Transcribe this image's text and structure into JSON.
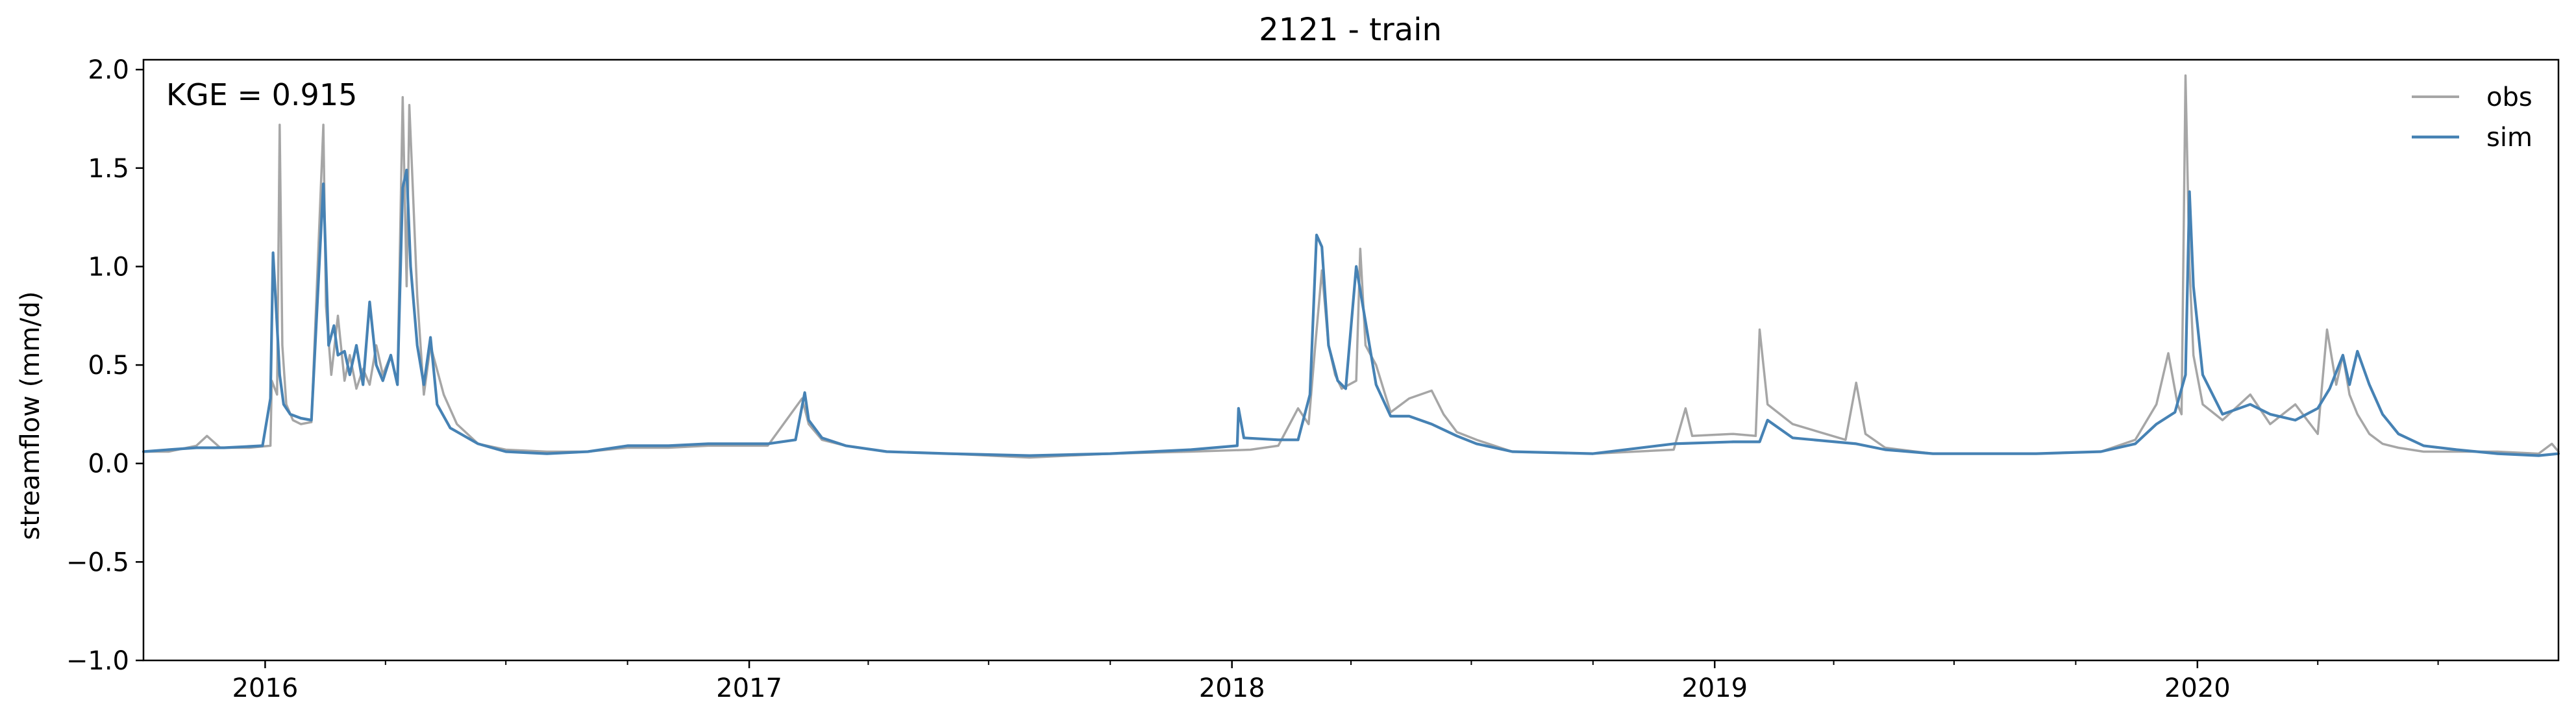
{
  "chart_data": {
    "type": "line",
    "title": "2121 - train",
    "xlabel": "",
    "ylabel": "streamflow (mm/d)",
    "annotation": "KGE = 0.915",
    "x_range": [
      "2015-10-01",
      "2020-09-30"
    ],
    "ylim": [
      -1.0,
      2.05
    ],
    "y_ticks": [
      -1.0,
      -0.5,
      0.0,
      0.5,
      1.0,
      1.5,
      2.0
    ],
    "y_tick_labels": [
      "−1.0",
      "−0.5",
      "0.0",
      "0.5",
      "1.0",
      "1.5",
      "2.0"
    ],
    "x_major_ticks": [
      "2016-01-01",
      "2017-01-01",
      "2018-01-01",
      "2019-01-01",
      "2020-01-01"
    ],
    "x_tick_labels": [
      "2016",
      "2017",
      "2018",
      "2019",
      "2020"
    ],
    "grid": false,
    "legend": {
      "position": "top-right",
      "entries": [
        "obs",
        "sim"
      ]
    },
    "colors": {
      "obs": "#a6a6a6",
      "sim": "#4682b4"
    },
    "series": [
      {
        "name": "obs",
        "x": [
          "2015-10-01",
          "2015-10-20",
          "2015-11-10",
          "2015-11-18",
          "2015-11-28",
          "2015-12-20",
          "2016-01-05",
          "2016-01-06",
          "2016-01-10",
          "2016-01-12",
          "2016-01-14",
          "2016-01-17",
          "2016-01-22",
          "2016-01-28",
          "2016-02-05",
          "2016-02-14",
          "2016-02-16",
          "2016-02-20",
          "2016-02-25",
          "2016-03-01",
          "2016-03-05",
          "2016-03-10",
          "2016-03-15",
          "2016-03-20",
          "2016-03-25",
          "2016-03-30",
          "2016-04-05",
          "2016-04-10",
          "2016-04-14",
          "2016-04-17",
          "2016-04-19",
          "2016-04-21",
          "2016-04-25",
          "2016-04-30",
          "2016-05-05",
          "2016-05-15",
          "2016-05-25",
          "2016-06-10",
          "2016-07-01",
          "2016-08-01",
          "2016-09-01",
          "2016-10-01",
          "2016-11-01",
          "2016-12-01",
          "2017-01-15",
          "2017-02-10",
          "2017-02-15",
          "2017-02-25",
          "2017-03-15",
          "2017-04-15",
          "2017-06-01",
          "2017-08-01",
          "2017-10-01",
          "2017-12-01",
          "2018-01-15",
          "2018-02-05",
          "2018-02-20",
          "2018-02-28",
          "2018-03-05",
          "2018-03-10",
          "2018-03-15",
          "2018-03-20",
          "2018-03-25",
          "2018-04-05",
          "2018-04-08",
          "2018-04-12",
          "2018-04-20",
          "2018-05-01",
          "2018-05-15",
          "2018-06-01",
          "2018-06-10",
          "2018-06-20",
          "2018-07-05",
          "2018-08-01",
          "2018-10-01",
          "2018-12-01",
          "2018-12-10",
          "2018-12-15",
          "2019-01-15",
          "2019-02-01",
          "2019-02-04",
          "2019-02-10",
          "2019-03-01",
          "2019-04-10",
          "2019-04-18",
          "2019-04-25",
          "2019-05-10",
          "2019-06-15",
          "2019-09-01",
          "2019-10-20",
          "2019-11-15",
          "2019-12-01",
          "2019-12-10",
          "2019-12-17",
          "2019-12-20",
          "2019-12-23",
          "2019-12-26",
          "2019-12-29",
          "2020-01-05",
          "2020-01-20",
          "2020-02-10",
          "2020-02-25",
          "2020-03-15",
          "2020-04-01",
          "2020-04-08",
          "2020-04-15",
          "2020-04-20",
          "2020-04-25",
          "2020-05-01",
          "2020-05-10",
          "2020-05-20",
          "2020-06-01",
          "2020-06-20",
          "2020-07-15",
          "2020-08-15",
          "2020-09-15",
          "2020-09-25",
          "2020-09-30"
        ],
        "values": [
          0.06,
          0.06,
          0.09,
          0.14,
          0.08,
          0.08,
          0.09,
          0.42,
          0.35,
          1.72,
          0.6,
          0.3,
          0.22,
          0.2,
          0.21,
          1.72,
          0.8,
          0.45,
          0.75,
          0.42,
          0.55,
          0.38,
          0.48,
          0.4,
          0.6,
          0.45,
          0.55,
          0.4,
          1.86,
          0.9,
          1.82,
          1.5,
          0.85,
          0.35,
          0.6,
          0.35,
          0.2,
          0.1,
          0.07,
          0.06,
          0.06,
          0.08,
          0.08,
          0.09,
          0.09,
          0.33,
          0.2,
          0.12,
          0.09,
          0.06,
          0.05,
          0.03,
          0.05,
          0.06,
          0.07,
          0.09,
          0.28,
          0.2,
          0.6,
          0.98,
          0.6,
          0.45,
          0.38,
          0.42,
          1.09,
          0.6,
          0.5,
          0.26,
          0.33,
          0.37,
          0.25,
          0.16,
          0.12,
          0.06,
          0.05,
          0.07,
          0.28,
          0.14,
          0.15,
          0.14,
          0.68,
          0.3,
          0.2,
          0.12,
          0.41,
          0.15,
          0.08,
          0.05,
          0.05,
          0.06,
          0.12,
          0.3,
          0.56,
          0.3,
          0.25,
          1.97,
          1.0,
          0.55,
          0.3,
          0.22,
          0.35,
          0.2,
          0.3,
          0.15,
          0.68,
          0.4,
          0.55,
          0.35,
          0.25,
          0.15,
          0.1,
          0.08,
          0.06,
          0.06,
          0.06,
          0.05,
          0.1,
          0.06
        ]
      },
      {
        "name": "sim",
        "x": [
          "2015-10-01",
          "2015-10-20",
          "2015-11-10",
          "2015-12-01",
          "2015-12-30",
          "2016-01-05",
          "2016-01-07",
          "2016-01-10",
          "2016-01-12",
          "2016-01-15",
          "2016-01-20",
          "2016-01-28",
          "2016-02-05",
          "2016-02-14",
          "2016-02-18",
          "2016-02-22",
          "2016-02-25",
          "2016-03-01",
          "2016-03-05",
          "2016-03-10",
          "2016-03-15",
          "2016-03-20",
          "2016-03-25",
          "2016-03-30",
          "2016-04-05",
          "2016-04-10",
          "2016-04-14",
          "2016-04-17",
          "2016-04-20",
          "2016-04-25",
          "2016-04-30",
          "2016-05-05",
          "2016-05-10",
          "2016-05-20",
          "2016-06-10",
          "2016-07-01",
          "2016-08-01",
          "2016-09-01",
          "2016-10-01",
          "2016-11-01",
          "2016-12-01",
          "2017-01-15",
          "2017-02-05",
          "2017-02-12",
          "2017-02-15",
          "2017-02-25",
          "2017-03-15",
          "2017-04-15",
          "2017-06-01",
          "2017-08-01",
          "2017-10-01",
          "2017-12-01",
          "2018-01-05",
          "2018-01-06",
          "2018-01-10",
          "2018-02-05",
          "2018-02-20",
          "2018-03-01",
          "2018-03-06",
          "2018-03-10",
          "2018-03-15",
          "2018-03-22",
          "2018-03-28",
          "2018-04-05",
          "2018-04-10",
          "2018-04-20",
          "2018-05-01",
          "2018-05-15",
          "2018-06-01",
          "2018-06-20",
          "2018-07-05",
          "2018-08-01",
          "2018-10-01",
          "2018-12-01",
          "2019-01-15",
          "2019-02-04",
          "2019-02-10",
          "2019-03-01",
          "2019-04-18",
          "2019-05-10",
          "2019-06-15",
          "2019-09-01",
          "2019-10-20",
          "2019-11-15",
          "2019-12-01",
          "2019-12-15",
          "2019-12-23",
          "2019-12-26",
          "2019-12-29",
          "2020-01-05",
          "2020-01-20",
          "2020-02-10",
          "2020-02-25",
          "2020-03-15",
          "2020-04-01",
          "2020-04-10",
          "2020-04-20",
          "2020-04-25",
          "2020-05-01",
          "2020-05-10",
          "2020-05-20",
          "2020-06-01",
          "2020-06-20",
          "2020-07-15",
          "2020-08-15",
          "2020-09-15",
          "2020-09-30"
        ],
        "values": [
          0.06,
          0.07,
          0.08,
          0.08,
          0.09,
          0.33,
          1.07,
          0.7,
          0.45,
          0.3,
          0.25,
          0.23,
          0.22,
          1.42,
          0.6,
          0.7,
          0.55,
          0.57,
          0.45,
          0.6,
          0.4,
          0.82,
          0.5,
          0.42,
          0.55,
          0.4,
          1.4,
          1.49,
          1.0,
          0.6,
          0.4,
          0.64,
          0.3,
          0.18,
          0.1,
          0.06,
          0.05,
          0.06,
          0.09,
          0.09,
          0.1,
          0.1,
          0.12,
          0.36,
          0.22,
          0.13,
          0.09,
          0.06,
          0.05,
          0.04,
          0.05,
          0.07,
          0.09,
          0.28,
          0.13,
          0.12,
          0.12,
          0.35,
          1.16,
          1.1,
          0.6,
          0.42,
          0.38,
          1.0,
          0.8,
          0.4,
          0.24,
          0.24,
          0.2,
          0.14,
          0.1,
          0.06,
          0.05,
          0.1,
          0.11,
          0.11,
          0.22,
          0.13,
          0.1,
          0.07,
          0.05,
          0.05,
          0.06,
          0.1,
          0.2,
          0.26,
          0.45,
          1.38,
          0.9,
          0.45,
          0.25,
          0.3,
          0.25,
          0.22,
          0.28,
          0.38,
          0.55,
          0.4,
          0.57,
          0.4,
          0.25,
          0.15,
          0.09,
          0.07,
          0.05,
          0.04,
          0.05
        ]
      }
    ]
  }
}
